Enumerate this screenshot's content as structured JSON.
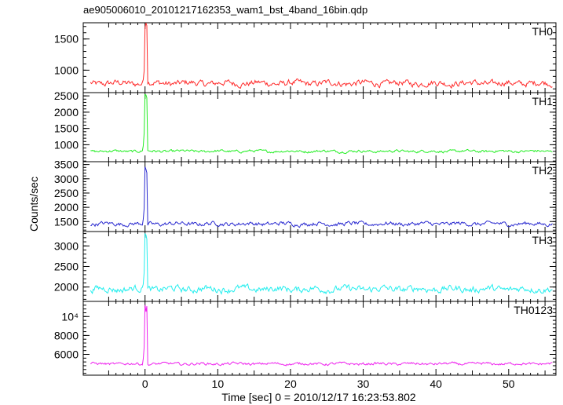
{
  "figure": {
    "title": "ae905006010_20101217162353_wam1_bst_4band_16bin.qdp",
    "xlabel": "Time [sec] 0 = 2010/12/17 16:23:53.802",
    "ylabel": "Counts/sec"
  },
  "chart_data": {
    "type": "line",
    "x_range": [
      -8.5,
      56.5
    ],
    "x_ticks": [
      0,
      10,
      20,
      30,
      40,
      50
    ],
    "x_tick_labels": [
      "0",
      "10",
      "20",
      "30",
      "40",
      "50"
    ],
    "time_step_sec": 0.125,
    "burst": {
      "rise_start": -0.3,
      "peak_start": 0.0,
      "peak_end": 0.35
    },
    "panels": [
      {
        "name": "TH0",
        "color": "#ff2a2a",
        "ylim": [
          640,
          1760
        ],
        "ticks": [
          1000,
          1500
        ],
        "tick_labels": [
          "1000",
          "1500"
        ],
        "base": 790,
        "noise": 55,
        "pre_burst": 1130,
        "peak": 1760
      },
      {
        "name": "TH1",
        "color": "#22ee22",
        "ylim": [
          480,
          2600
        ],
        "ticks": [
          1000,
          1500,
          2000,
          2500
        ],
        "tick_labels": [
          "1000",
          "1500",
          "2000",
          "2500"
        ],
        "base": 800,
        "noise": 45,
        "pre_burst": 1750,
        "peak": 2600
      },
      {
        "name": "TH2",
        "color": "#2a2ad0",
        "ylim": [
          1150,
          3600
        ],
        "ticks": [
          1500,
          2000,
          2500,
          3000,
          3500
        ],
        "tick_labels": [
          "1500",
          "2000",
          "2500",
          "3000",
          "3500"
        ],
        "base": 1420,
        "noise": 80,
        "pre_burst": 2350,
        "peak": 3550
      },
      {
        "name": "TH3",
        "color": "#22eeee",
        "ylim": [
          1650,
          3350
        ],
        "ticks": [
          2000,
          2500,
          3000
        ],
        "tick_labels": [
          "2000",
          "2500",
          "3000"
        ],
        "base": 1950,
        "noise": 90,
        "pre_burst": 2650,
        "peak": 3300
      },
      {
        "name": "TH0123",
        "color": "#ee22ee",
        "ylim": [
          3800,
          11600
        ],
        "ticks": [
          6000,
          8000,
          10000
        ],
        "tick_labels": [
          "6000",
          "8000",
          "10⁴"
        ],
        "base": 5000,
        "noise": 160,
        "pre_burst": 8000,
        "peak": 11500
      }
    ]
  }
}
